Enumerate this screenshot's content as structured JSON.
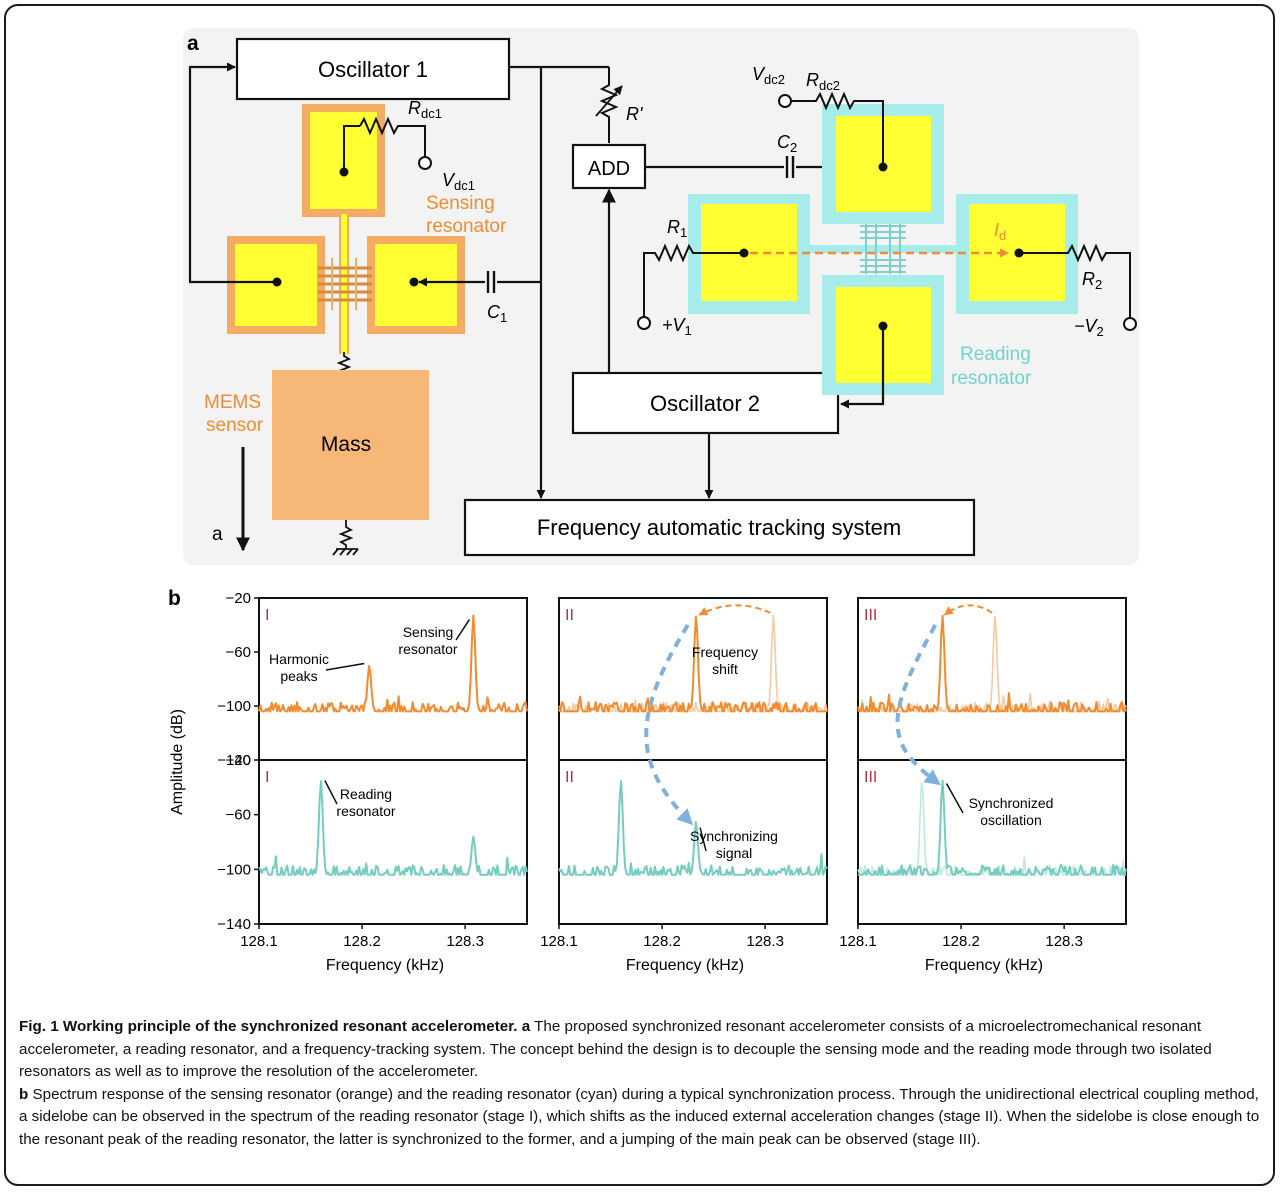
{
  "panel_a": {
    "letter": "a",
    "oscillator1": "Oscillator 1",
    "oscillator2": "Oscillator 2",
    "add": "ADD",
    "tracking": "Frequency automatic tracking system",
    "mass": "Mass",
    "mems_line1": "MEMS",
    "mems_line2": "sensor",
    "sensing_line1": "Sensing",
    "sensing_line2": "resonator",
    "reading_line1": "Reading",
    "reading_line2": "resonator",
    "accel_label": "a",
    "rdc1": "R",
    "rdc1_sub": "dc1",
    "vdc1": "V",
    "vdc1_sub": "dc1",
    "vdc2": "V",
    "vdc2_sub": "dc2",
    "rdc2": "R",
    "rdc2_sub": "dc2",
    "rprime": "R'",
    "c1": "C",
    "c1_sub": "1",
    "c2": "C",
    "c2_sub": "2",
    "r1": "R",
    "r1_sub": "1",
    "r2": "R",
    "r2_sub": "2",
    "v1": "+V",
    "v1_sub": "1",
    "v2": "−V",
    "v2_sub": "2",
    "id": "I",
    "id_sub": "d",
    "colors": {
      "panel_bg": "#f3f3f3",
      "electrode": "#ffff33",
      "sensing_frame": "#f4ab62",
      "mass": "#f7b877",
      "reading_frame": "#a6ecea",
      "orange_text": "#f08c34",
      "cyan_text": "#73d3cb"
    }
  },
  "panel_b": {
    "letter": "b",
    "ylabel": "Amplitude (dB)",
    "xlabel": "Frequency (kHz)",
    "roman": [
      "I",
      "II",
      "III"
    ],
    "annotations": {
      "harmonic_line1": "Harmonic",
      "harmonic_line2": "peaks",
      "sensing_line1": "Sensing",
      "sensing_line2": "resonator",
      "freq_line1": "Frequency",
      "freq_line2": "shift",
      "reading_line1": "Reading",
      "reading_line2": "resonator",
      "sync_line1": "Synchronizing",
      "sync_line2": "signal",
      "synced_line1": "Synchronized",
      "synced_line2": "oscillation"
    },
    "colors": {
      "sensing": "#f38a30",
      "sensing_faint": "#f8c89f",
      "reading": "#74cdbe",
      "reading_faint": "#c1e8df",
      "arrow_blue": "#7fb1dc",
      "roman": "#b1353f"
    }
  },
  "chart_data": {
    "type": "line",
    "xlabel": "Frequency (kHz)",
    "ylabel": "Amplitude (dB)",
    "xlim": [
      128.1,
      128.36
    ],
    "ylim": [
      -140,
      -20
    ],
    "x_ticks": [
      128.1,
      128.2,
      128.3
    ],
    "y_ticks": [
      -20,
      -60,
      -100,
      -140
    ],
    "noise_floor_db": -104,
    "panels": [
      {
        "stage": "I",
        "resonator": "sensing",
        "series": [
          {
            "peaks": [
              {
                "x": 128.308,
                "y": -33
              },
              {
                "x": 128.207,
                "y": -70
              }
            ]
          }
        ]
      },
      {
        "stage": "I",
        "resonator": "reading",
        "series": [
          {
            "peaks": [
              {
                "x": 128.16,
                "y": -35
              },
              {
                "x": 128.308,
                "y": -76
              }
            ]
          }
        ]
      },
      {
        "stage": "II",
        "resonator": "sensing",
        "series": [
          {
            "peaks": [
              {
                "x": 128.233,
                "y": -33
              }
            ]
          },
          {
            "faint": true,
            "peaks": [
              {
                "x": 128.308,
                "y": -33
              }
            ]
          }
        ]
      },
      {
        "stage": "II",
        "resonator": "reading",
        "series": [
          {
            "peaks": [
              {
                "x": 128.16,
                "y": -35
              },
              {
                "x": 128.233,
                "y": -65
              }
            ]
          }
        ]
      },
      {
        "stage": "III",
        "resonator": "sensing",
        "series": [
          {
            "peaks": [
              {
                "x": 128.182,
                "y": -33
              }
            ]
          },
          {
            "faint": true,
            "peaks": [
              {
                "x": 128.233,
                "y": -33
              }
            ]
          }
        ]
      },
      {
        "stage": "III",
        "resonator": "reading",
        "series": [
          {
            "peaks": [
              {
                "x": 128.182,
                "y": -35
              }
            ]
          },
          {
            "faint": true,
            "peaks": [
              {
                "x": 128.162,
                "y": -35
              }
            ]
          }
        ]
      }
    ]
  },
  "caption": {
    "fig_label": "Fig. 1 Working principle of the synchronized resonant accelerometer.",
    "a_label": "a",
    "a_text": "The proposed synchronized resonant accelerometer consists of a microelectromechanical resonant accelerometer, a reading resonator, and a frequency-tracking system. The concept behind the design is to decouple the sensing mode and the reading mode through two isolated resonators as well as to improve the resolution of the accelerometer.",
    "b_label": "b",
    "b_text": "Spectrum response of the sensing resonator (orange) and the reading resonator (cyan) during a typical synchronization process. Through the unidirectional electrical coupling method, a sidelobe can be observed in the spectrum of the reading resonator (stage I), which shifts as the induced external acceleration changes (stage II). When the sidelobe is close enough to the resonant peak of the reading resonator, the latter is synchronized to the former, and a jumping of the main peak can be observed (stage III)."
  }
}
